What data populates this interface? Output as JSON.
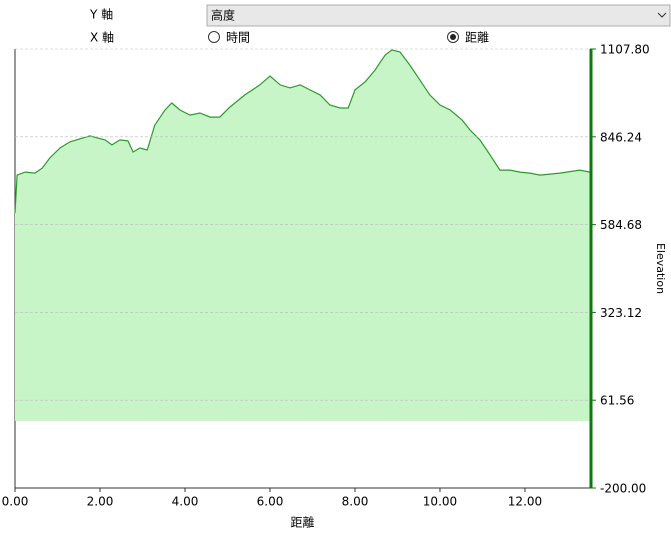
{
  "controls": {
    "y_axis_label": "Y 軸",
    "y_select": "高度",
    "x_axis_label": "X 軸",
    "x_options": [
      {
        "label": "時間",
        "selected": false
      },
      {
        "label": "距離",
        "selected": true
      }
    ]
  },
  "chart_data": {
    "type": "area",
    "x_label": "距離",
    "y_label": "Elevation",
    "x": [
      0.0,
      0.05,
      0.24,
      0.47,
      0.64,
      0.82,
      1.06,
      1.29,
      1.76,
      2.12,
      2.28,
      2.47,
      2.66,
      2.78,
      2.94,
      3.11,
      3.29,
      3.53,
      3.69,
      3.88,
      4.12,
      4.35,
      4.59,
      4.82,
      5.06,
      5.41,
      5.76,
      6.0,
      6.24,
      6.47,
      6.71,
      6.94,
      7.18,
      7.41,
      7.65,
      7.84,
      8.0,
      8.24,
      8.47,
      8.71,
      8.87,
      9.06,
      9.29,
      9.53,
      9.76,
      10.0,
      10.24,
      10.52,
      10.71,
      10.94,
      11.18,
      11.41,
      11.65,
      11.88,
      12.12,
      12.35,
      12.82,
      13.29,
      13.53
    ],
    "series": [
      {
        "name": "Elevation",
        "color": "#2e9a2e",
        "fill": "#c8f5c8",
        "values": [
          619,
          732,
          741,
          738,
          753,
          783,
          813,
          831,
          849,
          837,
          822,
          837,
          834,
          801,
          813,
          807,
          881,
          926,
          947,
          926,
          911,
          917,
          905,
          905,
          935,
          971,
          1001,
          1027,
          1001,
          992,
          1001,
          986,
          971,
          941,
          932,
          932,
          986,
          1010,
          1045,
          1090,
          1105,
          1099,
          1060,
          1015,
          971,
          941,
          926,
          896,
          866,
          837,
          792,
          747,
          747,
          741,
          738,
          732,
          738,
          747,
          741
        ]
      }
    ],
    "xlim": [
      0,
      13.53
    ],
    "ylim": [
      -200,
      1107.8
    ],
    "xticks": [
      {
        "value": 0,
        "label": "0.00"
      },
      {
        "value": 2,
        "label": "2.00"
      },
      {
        "value": 4,
        "label": "4.00"
      },
      {
        "value": 6,
        "label": "6.00"
      },
      {
        "value": 8,
        "label": "8.00"
      },
      {
        "value": 10,
        "label": "10.00"
      },
      {
        "value": 12,
        "label": "12.00"
      }
    ],
    "yticks": [
      {
        "value": -200,
        "label": "-200.00"
      },
      61.56,
      323.12,
      584.68,
      846.24,
      {
        "value": 1107.8,
        "label": "1107.80"
      }
    ],
    "axis_color": "#0a7a0a",
    "grid": true
  }
}
